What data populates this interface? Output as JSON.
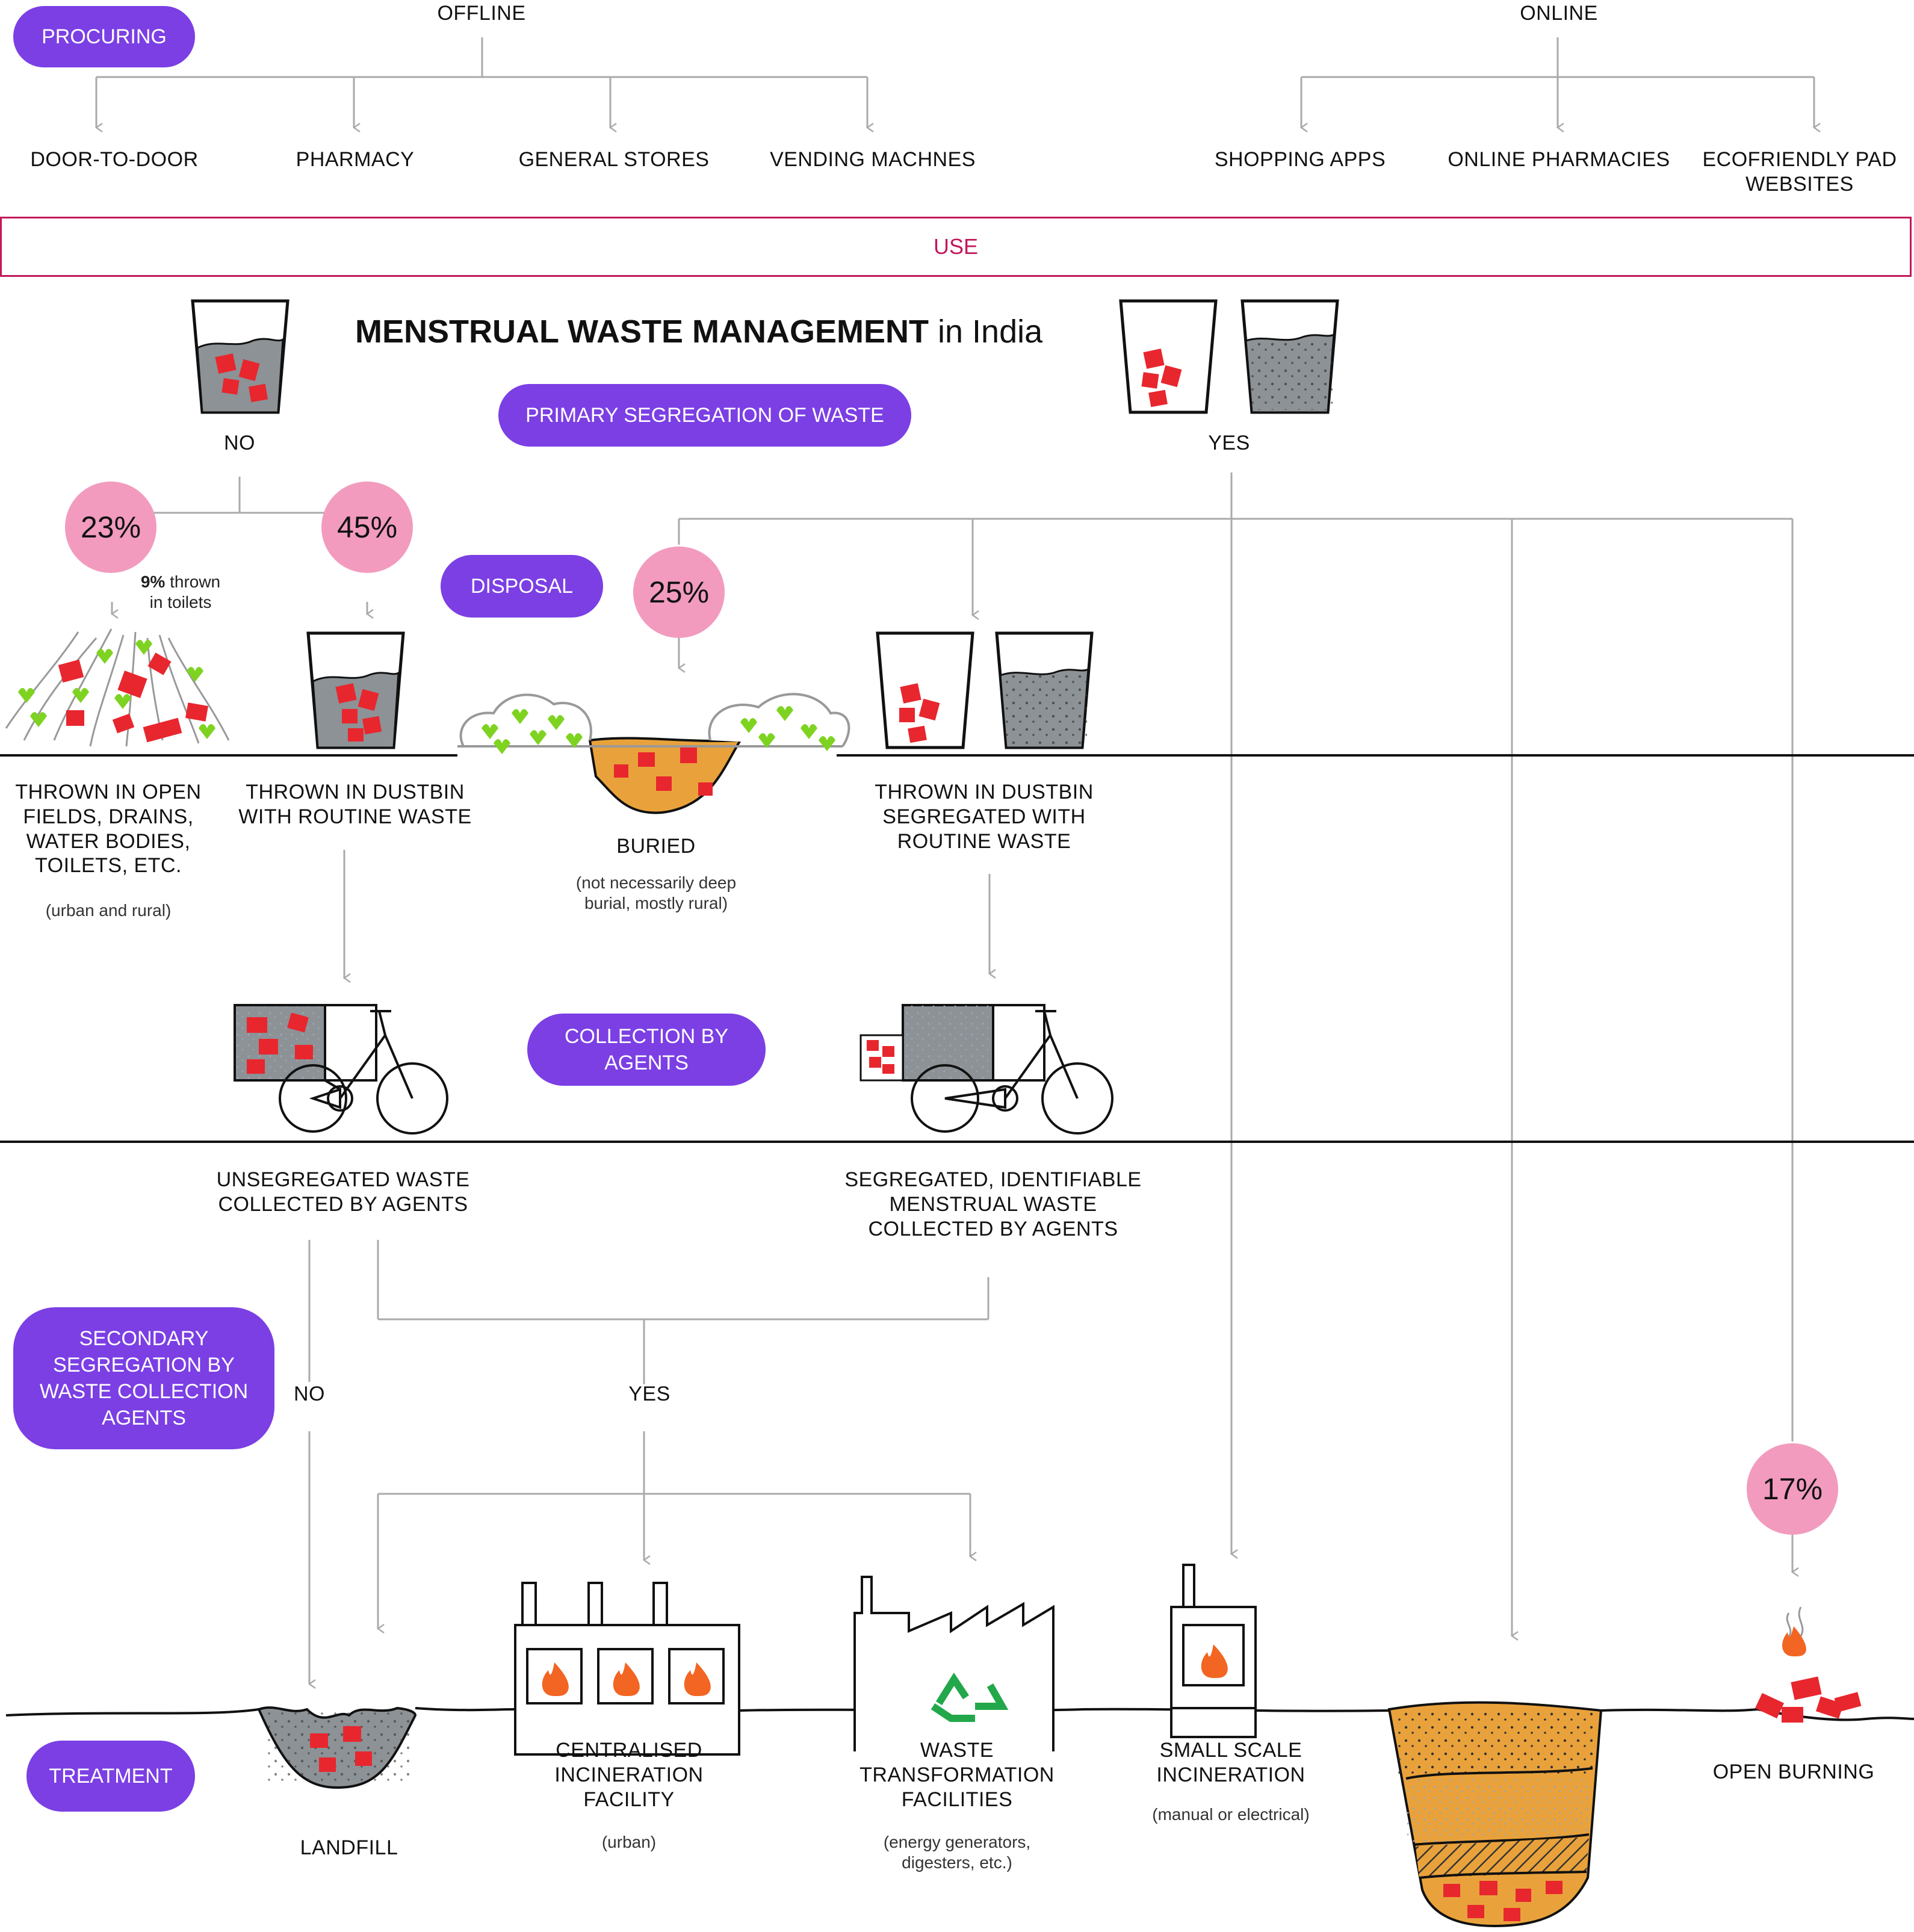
{
  "procuring": {
    "label": "PROCURING",
    "offline": {
      "label": "OFFLINE",
      "items": [
        "DOOR-TO-DOOR",
        "PHARMACY",
        "GENERAL STORES",
        "VENDING MACHNES"
      ]
    },
    "online": {
      "label": "ONLINE",
      "items": [
        "SHOPPING APPS",
        "ONLINE PHARMACIES",
        "ECOFRIENDLY PAD\nWEBSITES"
      ]
    }
  },
  "use": {
    "label": "USE"
  },
  "title": {
    "bold": "MENSTRUAL WASTE MANAGEMENT",
    "rest": " in India"
  },
  "primary_segregation": {
    "label": "PRIMARY SEGREGATION OF WASTE",
    "no": "NO",
    "yes": "YES"
  },
  "disposal": {
    "label": "DISPOSAL",
    "pct_open": "23%",
    "pct_dustbin": "45%",
    "pct_buried": "25%",
    "toilets_note_bold": "9%",
    "toilets_note_rest": " thrown\nin toilets",
    "open_fields": {
      "label": "THROWN IN OPEN\nFIELDS, DRAINS,\nWATER BODIES,\nTOILETS, ETC.",
      "note": "(urban and rural)"
    },
    "dustbin_routine": {
      "label": "THROWN IN DUSTBIN\nWITH ROUTINE WASTE"
    },
    "buried": {
      "label": "BURIED",
      "note": "(not necessarily deep\nburial, mostly rural)"
    },
    "dustbin_segregated": {
      "label": "THROWN IN DUSTBIN\nSEGREGATED WITH\nROUTINE WASTE"
    }
  },
  "collection": {
    "label": "COLLECTION BY\nAGENTS",
    "unsegregated": "UNSEGREGATED WASTE\nCOLLECTED BY AGENTS",
    "segregated": "SEGREGATED, IDENTIFIABLE\nMENSTRUAL WASTE\nCOLLECTED BY AGENTS"
  },
  "secondary_segregation": {
    "label": "SECONDARY\nSEGREGATION BY\nWASTE COLLECTION\nAGENTS",
    "no": "NO",
    "yes": "YES"
  },
  "treatment": {
    "label": "TREATMENT",
    "landfill": "LANDFILL",
    "centralised": {
      "label": "CENTRALISED\nINCINERATION\nFACILITY",
      "note": "(urban)"
    },
    "transformation": {
      "label": "WASTE\nTRANSFORMATION\nFACILITIES",
      "note": "(energy generators,\ndigesters, etc.)"
    },
    "small_scale": {
      "label": "SMALL SCALE\nINCINERATION",
      "note": "(manual or electrical)"
    },
    "open_burning": {
      "label": "OPEN BURNING",
      "pct": "17%"
    }
  },
  "colors": {
    "purple": "#7b3fe4",
    "pink": "#f29bbf",
    "magenta": "#c2185b",
    "pad_red": "#e8262e",
    "leaf_green": "#7ed321",
    "earth": "#e9a23b",
    "bin_grey": "#8c9296",
    "fire": "#f26522"
  }
}
